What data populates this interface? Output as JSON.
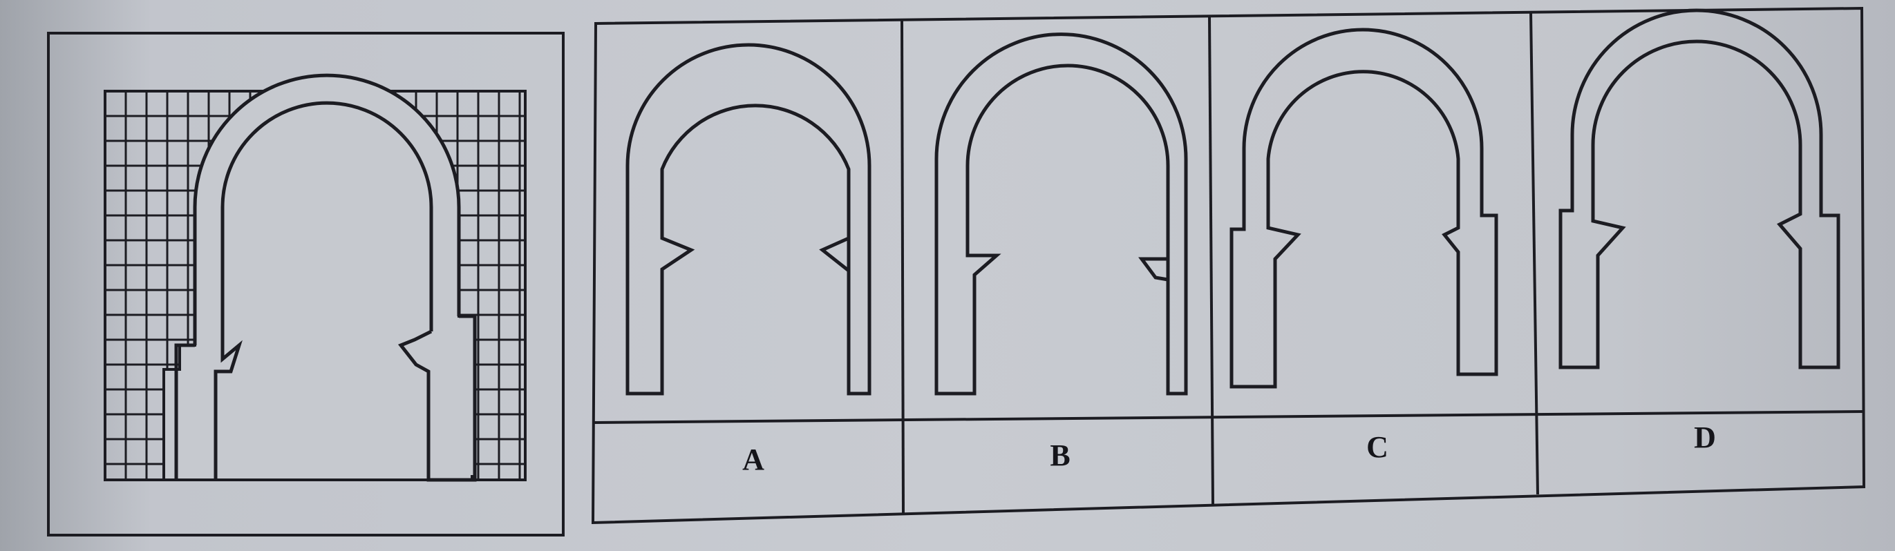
{
  "options": [
    {
      "letter": "A"
    },
    {
      "letter": "B"
    },
    {
      "letter": "C"
    },
    {
      "letter": "D"
    }
  ]
}
